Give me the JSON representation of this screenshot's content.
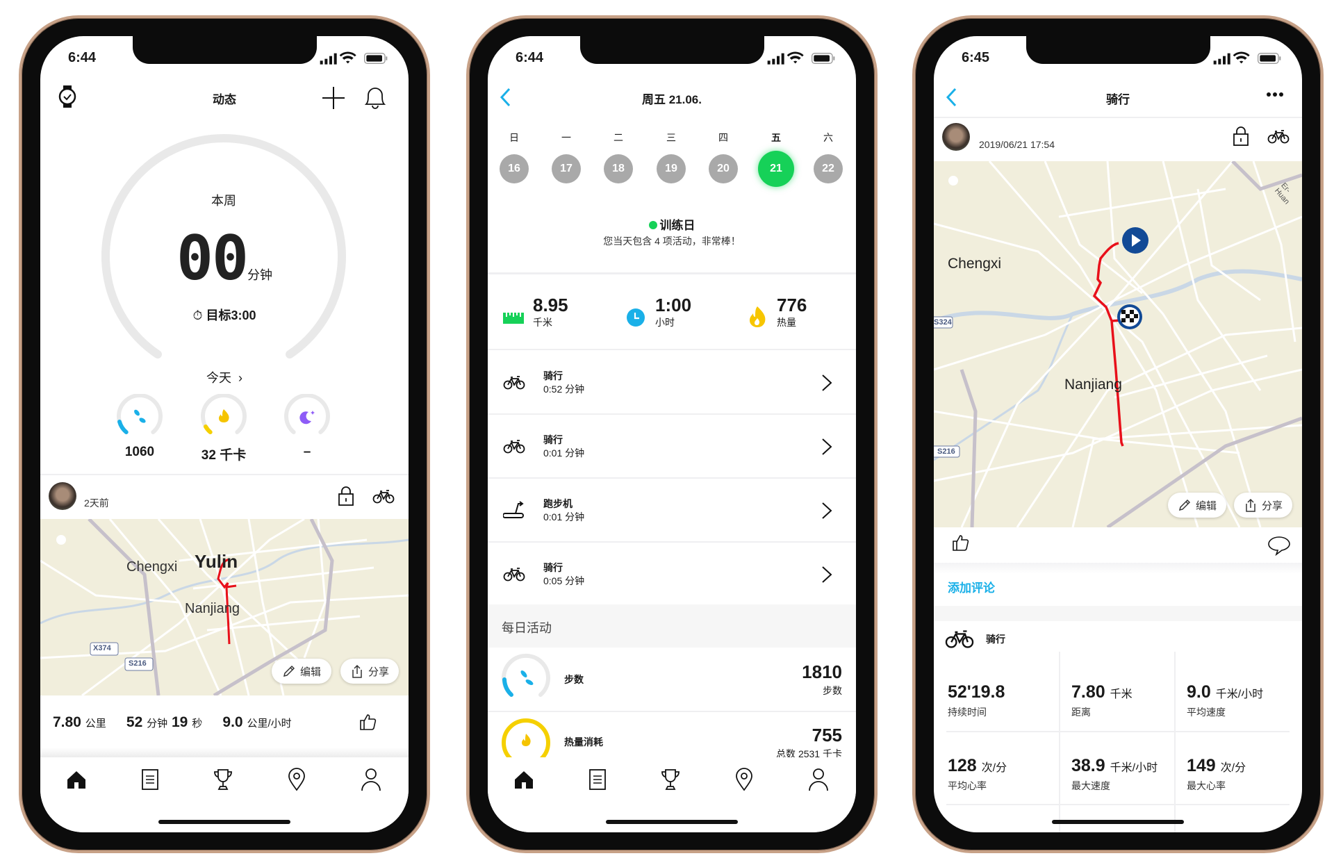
{
  "phones": [
    {
      "status_time": "6:44",
      "header_title": "动态",
      "week_label": "本周",
      "week_value": "00",
      "week_unit": "分钟",
      "goal": "目标3:00",
      "today_label": "今天",
      "today_stats": [
        {
          "icon": "steps-icon",
          "value": "1060",
          "color": "#1ab0e8"
        },
        {
          "icon": "flame-icon",
          "value": "32 千卡",
          "color": "#f5d000"
        },
        {
          "icon": "moon-icon",
          "value": "–",
          "color": "#8e5cf7"
        }
      ],
      "feed": {
        "time_ago": "2天前",
        "map_labels": [
          "Yulin",
          "Chengxi",
          "Nanjiang",
          "X374",
          "S216"
        ],
        "edit": "编辑",
        "share": "分享",
        "stats": [
          "7.80",
          "公里",
          "52",
          "分钟",
          "19",
          "秒",
          "9.0",
          "公里/小时"
        ]
      }
    },
    {
      "status_time": "6:44",
      "header_title": "周五 21.06.",
      "weekdays": [
        "日",
        "一",
        "二",
        "三",
        "四",
        "五",
        "六"
      ],
      "days": [
        "16",
        "17",
        "18",
        "19",
        "20",
        "21",
        "22"
      ],
      "selected_day": "21",
      "day_type": "训练日",
      "day_note": "您当天包含 4 项活动，非常棒！",
      "summary": [
        {
          "value": "8.95",
          "unit": "千米"
        },
        {
          "value": "1:00",
          "unit": "小时"
        },
        {
          "value": "776",
          "unit": "热量"
        }
      ],
      "activities": [
        {
          "name": "骑行",
          "duration": "0:52 分钟",
          "icon": "bike-icon"
        },
        {
          "name": "骑行",
          "duration": "0:01 分钟",
          "icon": "bike-icon"
        },
        {
          "name": "跑步机",
          "duration": "0:01 分钟",
          "icon": "treadmill-icon"
        },
        {
          "name": "骑行",
          "duration": "0:05 分钟",
          "icon": "bike-icon"
        }
      ],
      "daily_title": "每日活动",
      "steps": {
        "label": "步数",
        "value": "1810",
        "unit": "步数"
      },
      "calories": {
        "label": "热量消耗",
        "value": "755",
        "total": "总数 2531 千卡"
      }
    },
    {
      "status_time": "6:45",
      "header_title": "骑行",
      "datetime": "2019/06/21 17:54",
      "map_labels": [
        "Chengxi",
        "Nanjiang",
        "S324",
        "S216",
        "Er-Huan"
      ],
      "edit": "编辑",
      "share": "分享",
      "add_comment": "添加评论",
      "sport": "骑行",
      "metrics": [
        {
          "value": "52'19.8",
          "unit": "",
          "label": "持续时间"
        },
        {
          "value": "7.80",
          "unit": "千米",
          "label": "距离"
        },
        {
          "value": "9.0",
          "unit": "千米/小时",
          "label": "平均速度"
        },
        {
          "value": "128",
          "unit": "次/分",
          "label": "平均心率"
        },
        {
          "value": "38.9",
          "unit": "千米/小时",
          "label": "最大速度"
        },
        {
          "value": "149",
          "unit": "次/分",
          "label": "最大心率"
        }
      ]
    }
  ],
  "colors": {
    "accent_blue": "#1ab0e8",
    "green": "#16d158",
    "route_red": "#e8101a",
    "map_bg": "#f1eedc"
  }
}
